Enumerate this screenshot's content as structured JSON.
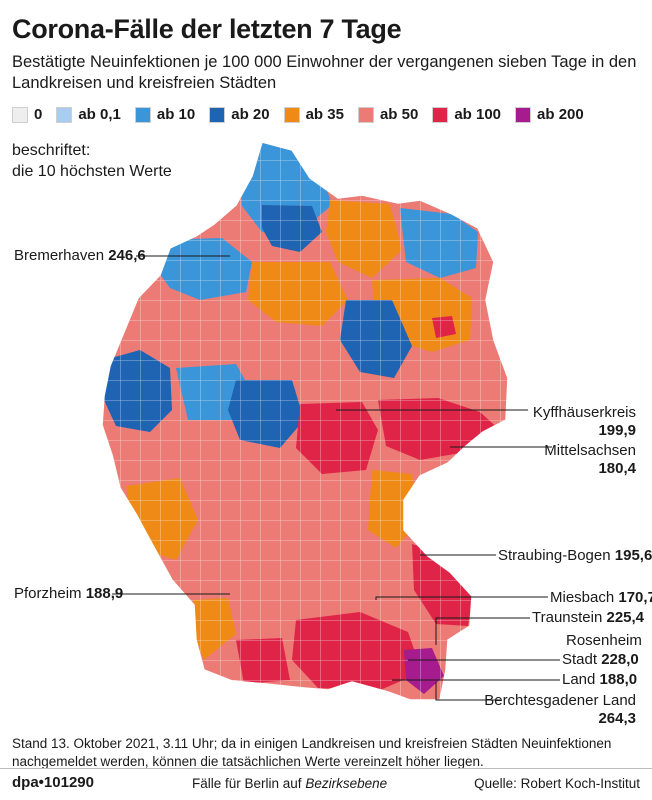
{
  "header": {
    "title": "Corona-Fälle der letzten 7 Tage",
    "subtitle": "Bestätigte Neuinfektionen je 100 000 Einwohner der vergangenen sieben Tage in den Landkreisen und kreisfreien Städten"
  },
  "legend": [
    {
      "label": "0",
      "color": "#eeeeee"
    },
    {
      "label": "ab 0,1",
      "color": "#a9cdf0"
    },
    {
      "label": "ab 10",
      "color": "#3a95d9"
    },
    {
      "label": "ab 20",
      "color": "#1f63b3"
    },
    {
      "label": "ab 35",
      "color": "#ef8a17"
    },
    {
      "label": "ab 50",
      "color": "#ec7b76"
    },
    {
      "label": "ab 100",
      "color": "#df2447"
    },
    {
      "label": "ab 200",
      "color": "#a61b8e"
    }
  ],
  "note": {
    "line1": "beschriftet:",
    "line2": "die 10 höchsten Werte"
  },
  "labels": {
    "bremerhaven": {
      "name": "Bremerhaven",
      "value": "246,6"
    },
    "kyffhaeuser": {
      "name": "Kyffhäuserkreis",
      "value": "199,9"
    },
    "mittelsachsen": {
      "name": "Mittelsachsen",
      "value": "180,4"
    },
    "straubing": {
      "name": "Straubing-Bogen",
      "value": "195,6"
    },
    "pforzheim": {
      "name": "Pforzheim",
      "value": "188,9"
    },
    "miesbach": {
      "name": "Miesbach",
      "value": "170,7"
    },
    "traunstein": {
      "name": "Traunstein",
      "value": "225,4"
    },
    "rosenheim": {
      "name": "Rosenheim",
      "stadt": "Stadt",
      "stadt_value": "228,0",
      "land": "Land",
      "land_value": "188,0"
    },
    "berchtesgaden": {
      "name": "Berchtesgadener Land",
      "value": "264,3"
    }
  },
  "footer": {
    "stand": "Stand 13. Oktober 2021, 3.11 Uhr; da in einigen Landkreisen und kreisfreien Städten Neuinfektionen nachgemeldet werden, können die tatsächlichen Werte vereinzelt höher liegen.",
    "agency": "dpa•101290",
    "berlin_prefix": "Fälle für Berlin auf",
    "berlin_emph": "Bezirksebene",
    "source": "Quelle: Robert Koch-Institut"
  }
}
